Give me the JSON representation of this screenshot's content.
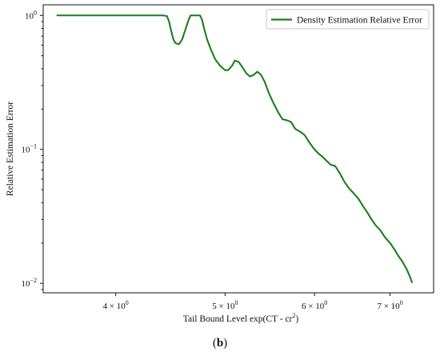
{
  "chart_data": {
    "type": "line",
    "title": "",
    "xlabel_prefix": "Tail Bound Level exp(CT - cr",
    "xlabel_sup": "2",
    "xlabel_suffix": ")",
    "ylabel": "Relative Estimation Error",
    "xscale": "log",
    "yscale": "log",
    "xlim": [
      3.45,
      7.65
    ],
    "ylim": [
      0.0085,
      1.2
    ],
    "grid": false,
    "legend_position": "top-right",
    "x_ticks": [
      {
        "value": 4,
        "base": "4 × 10",
        "exp": "0"
      },
      {
        "value": 5,
        "base": "5 × 10",
        "exp": "0"
      },
      {
        "value": 6,
        "base": "6 × 10",
        "exp": "0"
      },
      {
        "value": 7,
        "base": "7 × 10",
        "exp": "0"
      }
    ],
    "y_ticks": [
      {
        "value": 1,
        "base": "10",
        "exp": "0"
      },
      {
        "value": 0.1,
        "base": "10",
        "exp": "−1"
      },
      {
        "value": 0.01,
        "base": "10",
        "exp": "−2"
      }
    ],
    "series": [
      {
        "name": "Density Estimation Relative Error",
        "color": "#1a7f1a",
        "x": [
          3.55,
          3.9,
          4.2,
          4.4,
          4.44,
          4.46,
          4.48,
          4.5,
          4.52,
          4.55,
          4.58,
          4.61,
          4.64,
          4.66,
          4.69,
          4.72,
          4.75,
          4.77,
          4.79,
          4.82,
          4.86,
          4.9,
          4.95,
          5.0,
          5.03,
          5.07,
          5.1,
          5.14,
          5.18,
          5.22,
          5.26,
          5.3,
          5.34,
          5.38,
          5.42,
          5.47,
          5.52,
          5.57,
          5.62,
          5.67,
          5.72,
          5.77,
          5.83,
          5.88,
          5.94,
          6.0,
          6.05,
          6.1,
          6.15,
          6.2,
          6.26,
          6.32,
          6.38,
          6.44,
          6.5,
          6.56,
          6.62,
          6.68,
          6.74,
          6.8,
          6.86,
          6.93,
          7.0,
          7.06,
          7.12,
          7.18,
          7.24,
          7.28,
          7.32
        ],
        "y": [
          1.0,
          1.0,
          1.0,
          1.0,
          0.99,
          0.9,
          0.76,
          0.66,
          0.62,
          0.61,
          0.66,
          0.78,
          0.92,
          1.0,
          1.0,
          1.0,
          1.0,
          0.93,
          0.8,
          0.66,
          0.55,
          0.47,
          0.42,
          0.39,
          0.39,
          0.42,
          0.46,
          0.45,
          0.41,
          0.37,
          0.35,
          0.36,
          0.38,
          0.36,
          0.32,
          0.26,
          0.22,
          0.19,
          0.168,
          0.165,
          0.16,
          0.142,
          0.135,
          0.128,
          0.112,
          0.1,
          0.093,
          0.088,
          0.082,
          0.077,
          0.075,
          0.066,
          0.057,
          0.051,
          0.047,
          0.043,
          0.038,
          0.034,
          0.03,
          0.027,
          0.025,
          0.022,
          0.02,
          0.018,
          0.016,
          0.0145,
          0.0128,
          0.0115,
          0.0102
        ]
      }
    ]
  },
  "caption": {
    "open": "(",
    "letter": "b",
    "close": ")"
  }
}
